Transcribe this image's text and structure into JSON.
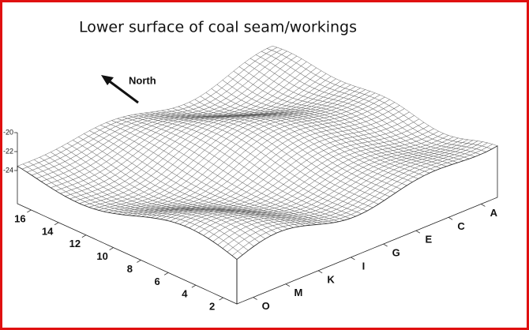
{
  "chart_data": {
    "type": "surface",
    "title": "Lower surface of coal seam/workings",
    "annotation": "North",
    "xlim": [
      1,
      17
    ],
    "xticks": [
      2,
      4,
      6,
      8,
      10,
      12,
      14,
      16
    ],
    "categories": [
      "A",
      "C",
      "E",
      "G",
      "I",
      "K",
      "M",
      "O"
    ],
    "zlim": [
      -24,
      -20
    ],
    "zticks": [
      -20,
      -22,
      -24
    ],
    "color": "#555555"
  }
}
